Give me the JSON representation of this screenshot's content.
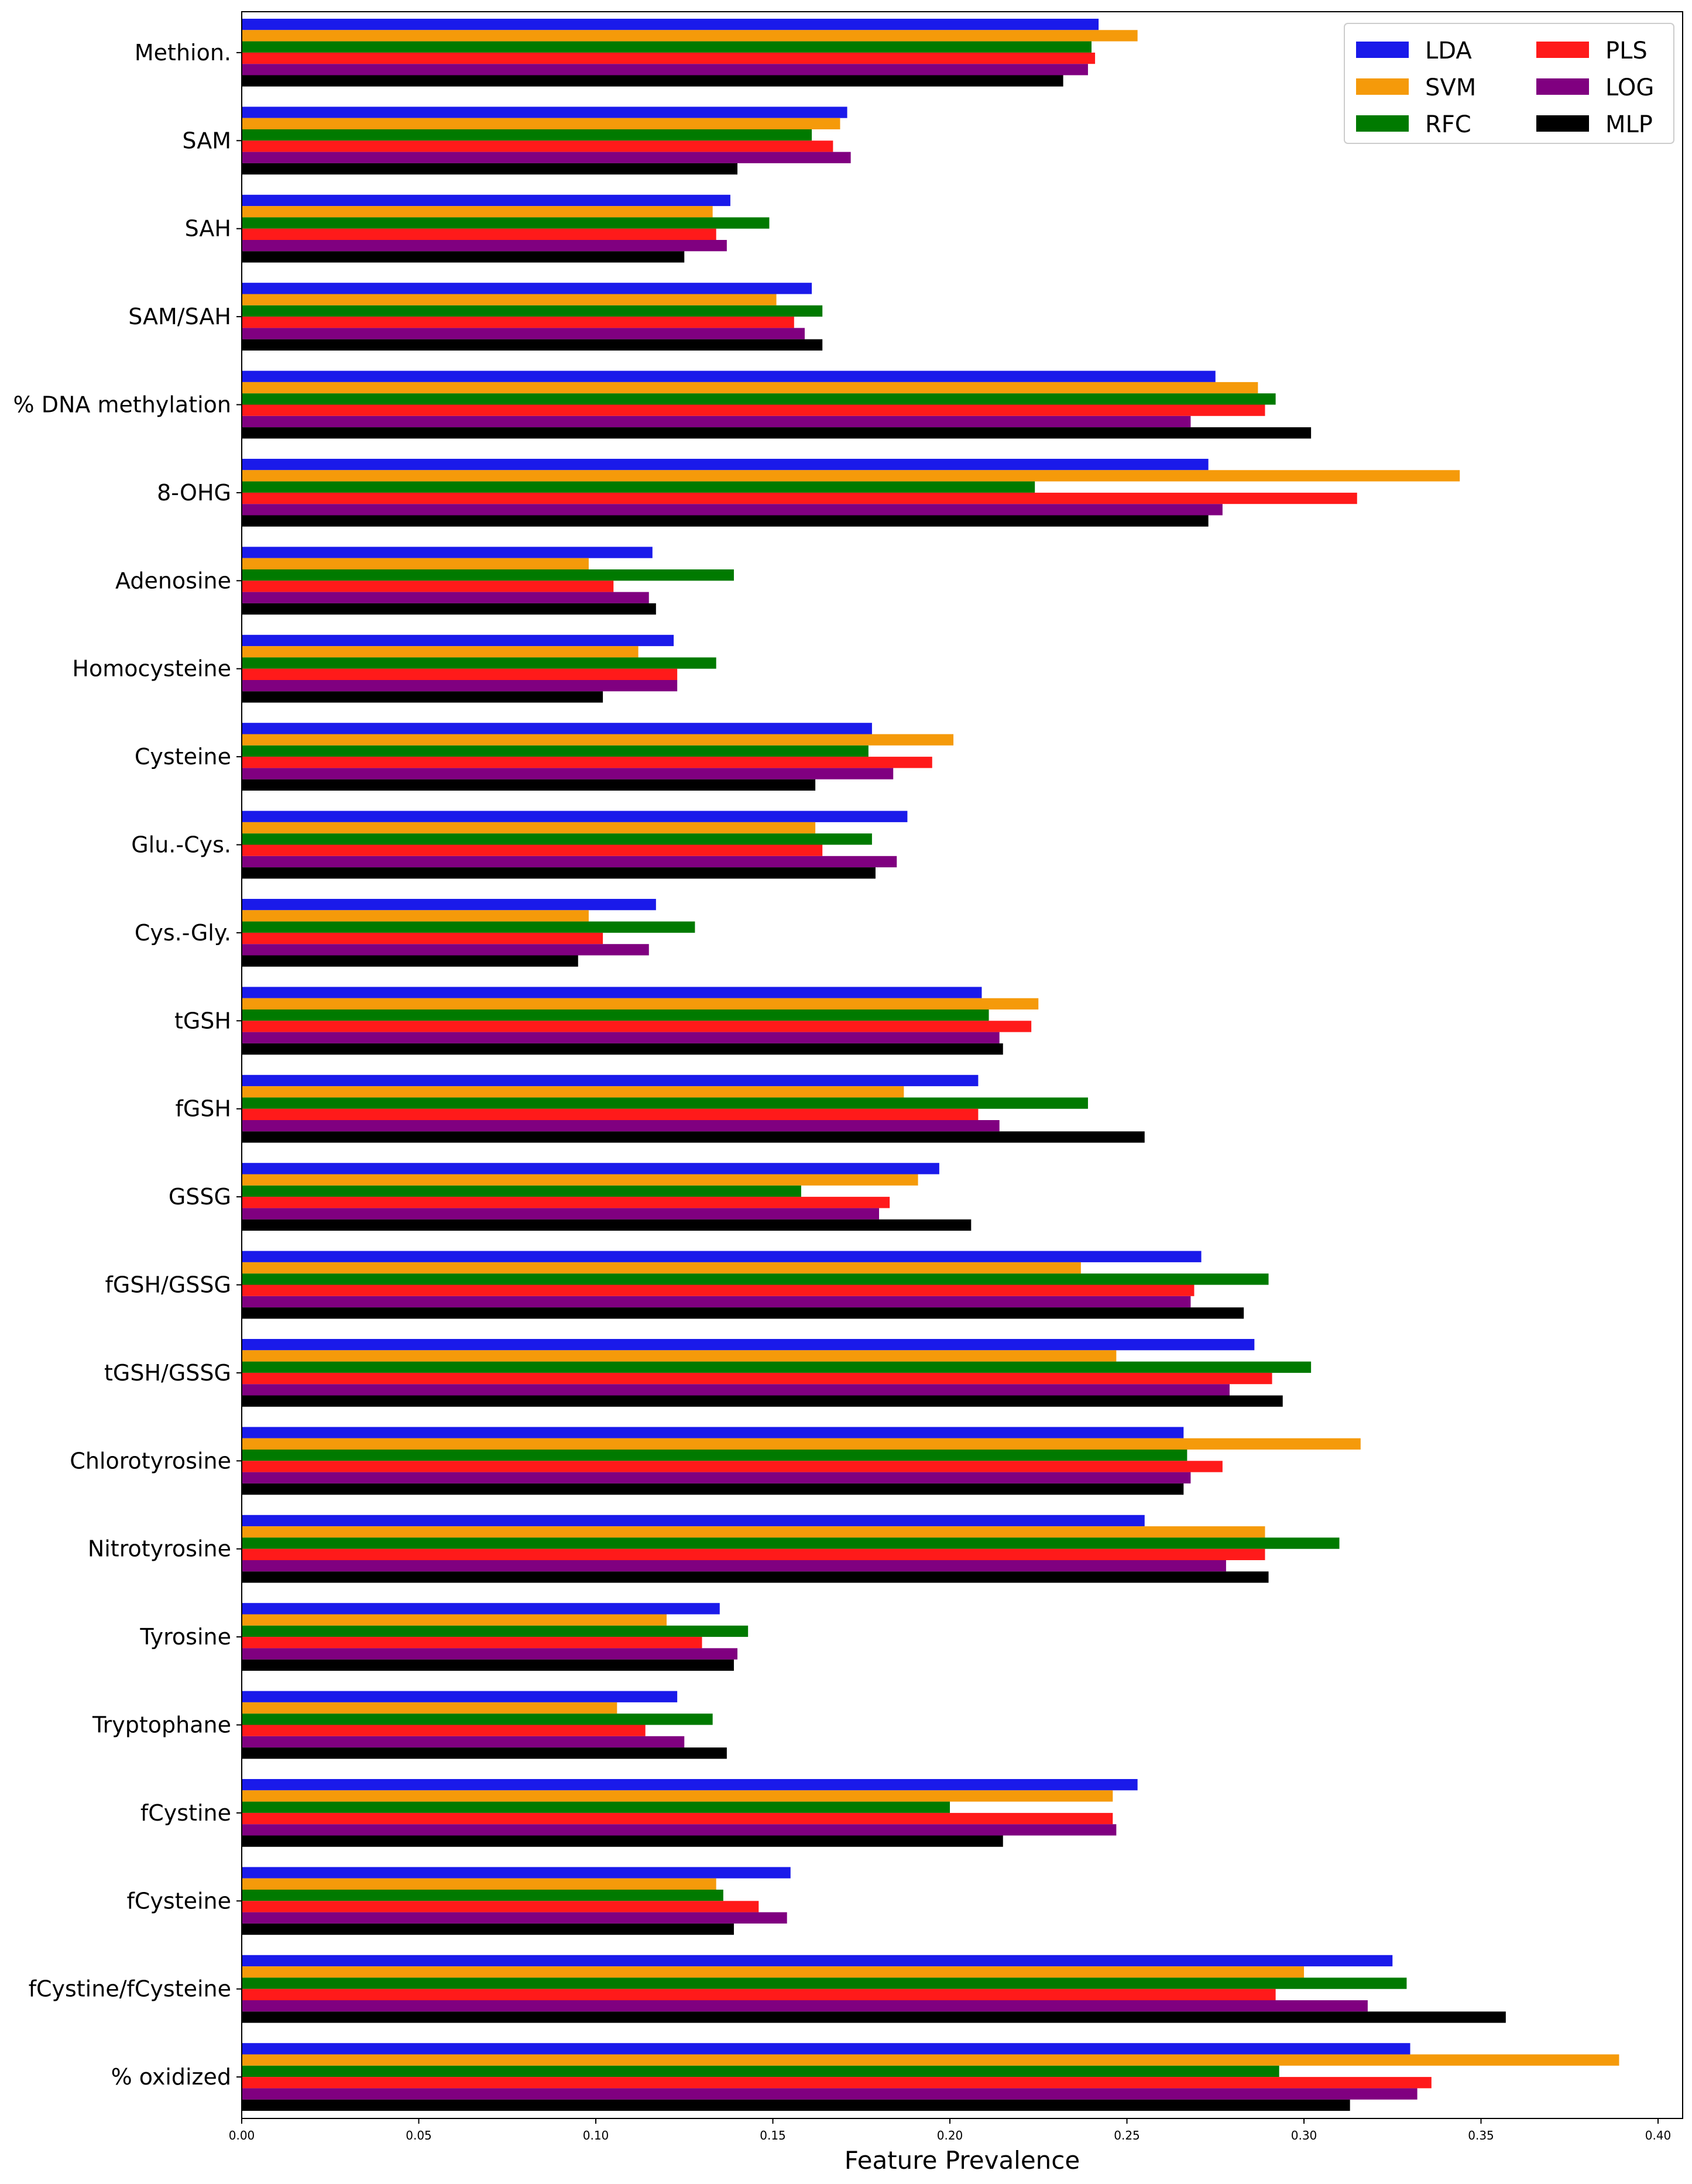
{
  "chart_data": {
    "type": "bar",
    "orientation": "horizontal",
    "xlabel": "Feature Prevalence",
    "ylabel": "",
    "title": "",
    "xlim": [
      0,
      0.41
    ],
    "xticks": [
      0.0,
      0.05,
      0.1,
      0.15,
      0.2,
      0.25,
      0.3,
      0.35,
      0.4
    ],
    "xtick_labels": [
      "0.00",
      "0.05",
      "0.10",
      "0.15",
      "0.20",
      "0.25",
      "0.30",
      "0.35",
      "0.40"
    ],
    "grid": false,
    "legend_position": "top-right",
    "categories": [
      "Methion.",
      "SAM",
      "SAH",
      "SAM/SAH",
      "% DNA methylation",
      "8-OHG",
      "Adenosine",
      "Homocysteine",
      "Cysteine",
      "Glu.-Cys.",
      "Cys.-Gly.",
      "tGSH",
      "fGSH",
      "GSSG",
      "fGSH/GSSG",
      "tGSH/GSSG",
      "Chlorotyrosine",
      "Nitrotyrosine",
      "Tyrosine",
      "Tryptophane",
      "fCystine",
      "fCysteine",
      "fCystine/fCysteine",
      "% oxidized"
    ],
    "series": [
      {
        "name": "LDA",
        "color": "#1a1aea",
        "values": [
          0.242,
          0.171,
          0.138,
          0.161,
          0.275,
          0.273,
          0.116,
          0.122,
          0.178,
          0.188,
          0.117,
          0.209,
          0.208,
          0.197,
          0.271,
          0.286,
          0.266,
          0.255,
          0.135,
          0.123,
          0.253,
          0.155,
          0.325,
          0.33
        ]
      },
      {
        "name": "SVM",
        "color": "#f59a0a",
        "values": [
          0.253,
          0.169,
          0.133,
          0.151,
          0.287,
          0.344,
          0.098,
          0.112,
          0.201,
          0.162,
          0.098,
          0.225,
          0.187,
          0.191,
          0.237,
          0.247,
          0.316,
          0.289,
          0.12,
          0.106,
          0.246,
          0.134,
          0.3,
          0.389
        ]
      },
      {
        "name": "RFC",
        "color": "#007a00",
        "values": [
          0.24,
          0.161,
          0.149,
          0.164,
          0.292,
          0.224,
          0.139,
          0.134,
          0.177,
          0.178,
          0.128,
          0.211,
          0.239,
          0.158,
          0.29,
          0.302,
          0.267,
          0.31,
          0.143,
          0.133,
          0.2,
          0.136,
          0.329,
          0.293
        ]
      },
      {
        "name": "PLS",
        "color": "#ff1a1a",
        "values": [
          0.241,
          0.167,
          0.134,
          0.156,
          0.289,
          0.315,
          0.105,
          0.123,
          0.195,
          0.164,
          0.102,
          0.223,
          0.208,
          0.183,
          0.269,
          0.291,
          0.277,
          0.289,
          0.13,
          0.114,
          0.246,
          0.146,
          0.292,
          0.336
        ]
      },
      {
        "name": "LOG",
        "color": "#800080",
        "values": [
          0.239,
          0.172,
          0.137,
          0.159,
          0.268,
          0.277,
          0.115,
          0.123,
          0.184,
          0.185,
          0.115,
          0.214,
          0.214,
          0.18,
          0.268,
          0.279,
          0.268,
          0.278,
          0.14,
          0.125,
          0.247,
          0.154,
          0.318,
          0.332
        ]
      },
      {
        "name": "MLP",
        "color": "#000000",
        "values": [
          0.232,
          0.14,
          0.125,
          0.164,
          0.302,
          0.273,
          0.117,
          0.102,
          0.162,
          0.179,
          0.095,
          0.215,
          0.255,
          0.206,
          0.283,
          0.294,
          0.266,
          0.29,
          0.139,
          0.137,
          0.215,
          0.139,
          0.357,
          0.313
        ]
      }
    ]
  }
}
